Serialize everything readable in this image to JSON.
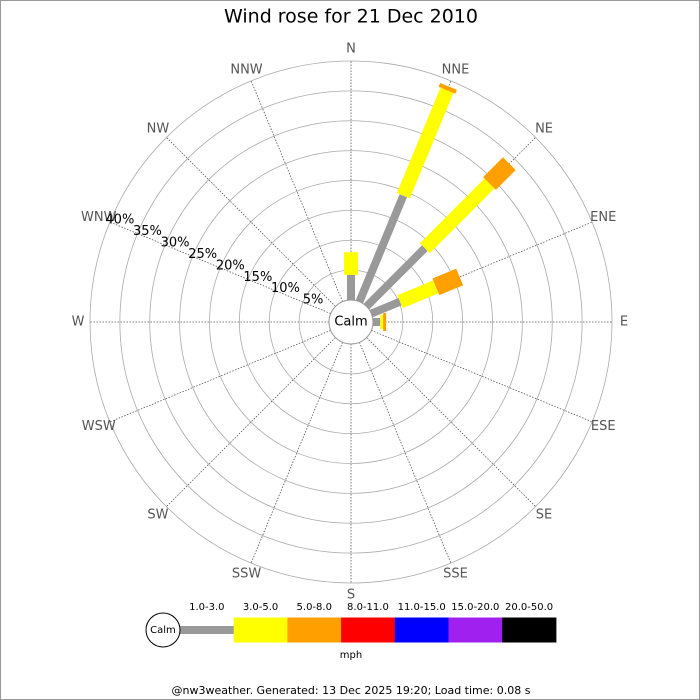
{
  "chart_data": {
    "type": "rose",
    "title": "Wind rose for 21 Dec 2010",
    "directions": [
      "N",
      "NNE",
      "NE",
      "ENE",
      "E",
      "ESE",
      "SE",
      "SSE",
      "S",
      "SSW",
      "SW",
      "WSW",
      "W",
      "WNW",
      "NW",
      "NNW"
    ],
    "calm_label": "Calm",
    "rlim": [
      0,
      40
    ],
    "rticks": [
      {
        "value": 5,
        "label": "5%"
      },
      {
        "value": 10,
        "label": "10%"
      },
      {
        "value": 15,
        "label": "15%"
      },
      {
        "value": 20,
        "label": "20%"
      },
      {
        "value": 25,
        "label": "25%"
      },
      {
        "value": 30,
        "label": "30%"
      },
      {
        "value": 35,
        "label": "35%"
      },
      {
        "value": 40,
        "label": "40%"
      }
    ],
    "series": [
      {
        "name": "1.0-3.0",
        "color": "#999999",
        "values": [
          4.2,
          19.2,
          13.8,
          5.2,
          1.2,
          0,
          0,
          0,
          0,
          0,
          0,
          0,
          0,
          0,
          0,
          0
        ]
      },
      {
        "name": "3.0-5.0",
        "color": "#ffff00",
        "values": [
          3.8,
          19.1,
          15.3,
          6.5,
          0.5,
          0,
          0,
          0,
          0,
          0,
          0,
          0,
          0,
          0,
          0,
          0
        ]
      },
      {
        "name": "5.0-8.0",
        "color": "#ffa000",
        "values": [
          0,
          0.7,
          4.7,
          4.3,
          0.5,
          0,
          0,
          0,
          0,
          0,
          0,
          0,
          0,
          0,
          0,
          0
        ]
      },
      {
        "name": "8.0-11.0",
        "color": "#ff0000",
        "values": [
          0,
          0,
          0,
          0,
          0,
          0,
          0,
          0,
          0,
          0,
          0,
          0,
          0,
          0,
          0,
          0
        ]
      },
      {
        "name": "11.0-15.0",
        "color": "#0000ff",
        "values": [
          0,
          0,
          0,
          0,
          0,
          0,
          0,
          0,
          0,
          0,
          0,
          0,
          0,
          0,
          0,
          0
        ]
      },
      {
        "name": "15.0-20.0",
        "color": "#a020f0",
        "values": [
          0,
          0,
          0,
          0,
          0,
          0,
          0,
          0,
          0,
          0,
          0,
          0,
          0,
          0,
          0,
          0
        ]
      },
      {
        "name": "20.0-50.0",
        "color": "#000000",
        "values": [
          0,
          0,
          0,
          0,
          0,
          0,
          0,
          0,
          0,
          0,
          0,
          0,
          0,
          0,
          0,
          0
        ]
      }
    ],
    "legend_unit": "mph",
    "footer": "@nw3weather. Generated: 13 Dec 2025 19:20; Load time: 0.08 s"
  }
}
